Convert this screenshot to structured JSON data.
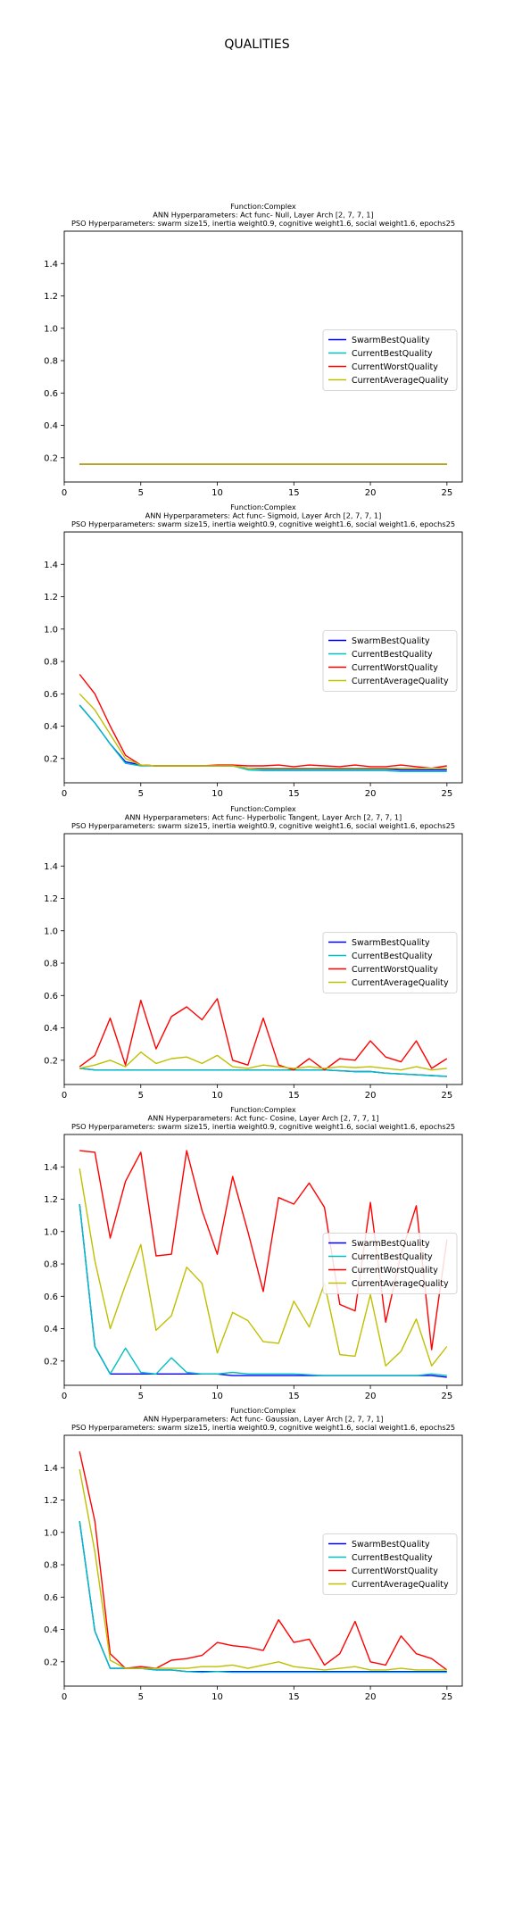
{
  "suptitle": "QUALITIES",
  "colors": {
    "SwarmBestQuality": "#0000ff",
    "CurrentBestQuality": "#00bfbf",
    "CurrentWorstQuality": "#ff0000",
    "CurrentAverageQuality": "#bfbf00"
  },
  "chart_data": [
    {
      "type": "line",
      "title_lines": [
        "Function:Complex",
        "ANN Hyperparameters: Act func- Null, Layer Arch [2, 7, 7, 1]",
        "PSO Hyperparameters: swarm size15, inertia weight0.9, cognitive weight1.6, social weight1.6, epochs25"
      ],
      "x": [
        1,
        2,
        3,
        4,
        5,
        6,
        7,
        8,
        9,
        10,
        11,
        12,
        13,
        14,
        15,
        16,
        17,
        18,
        19,
        20,
        21,
        22,
        23,
        24,
        25
      ],
      "xlim": [
        0,
        26
      ],
      "ylim": [
        0.05,
        1.6
      ],
      "xticks": [
        0,
        5,
        10,
        15,
        20,
        25
      ],
      "yticks": [
        0.2,
        0.4,
        0.6,
        0.8,
        1.0,
        1.2,
        1.4
      ],
      "legend": "center-right",
      "series": [
        {
          "name": "SwarmBestQuality",
          "values": [
            0.16,
            0.16,
            0.16,
            0.16,
            0.16,
            0.16,
            0.16,
            0.16,
            0.16,
            0.16,
            0.16,
            0.16,
            0.16,
            0.16,
            0.16,
            0.16,
            0.16,
            0.16,
            0.16,
            0.16,
            0.16,
            0.16,
            0.16,
            0.16,
            0.16
          ]
        },
        {
          "name": "CurrentBestQuality",
          "values": [
            0.16,
            0.16,
            0.16,
            0.16,
            0.16,
            0.16,
            0.16,
            0.16,
            0.16,
            0.16,
            0.16,
            0.16,
            0.16,
            0.16,
            0.16,
            0.16,
            0.16,
            0.16,
            0.16,
            0.16,
            0.16,
            0.16,
            0.16,
            0.16,
            0.16
          ]
        },
        {
          "name": "CurrentWorstQuality",
          "values": [
            0.16,
            0.16,
            0.16,
            0.16,
            0.16,
            0.16,
            0.16,
            0.16,
            0.16,
            0.16,
            0.16,
            0.16,
            0.16,
            0.16,
            0.16,
            0.16,
            0.16,
            0.16,
            0.16,
            0.16,
            0.16,
            0.16,
            0.16,
            0.16,
            0.16
          ]
        },
        {
          "name": "CurrentAverageQuality",
          "values": [
            0.16,
            0.16,
            0.16,
            0.16,
            0.16,
            0.16,
            0.16,
            0.16,
            0.16,
            0.16,
            0.16,
            0.16,
            0.16,
            0.16,
            0.16,
            0.16,
            0.16,
            0.16,
            0.16,
            0.16,
            0.16,
            0.16,
            0.16,
            0.16,
            0.16
          ]
        }
      ]
    },
    {
      "type": "line",
      "title_lines": [
        "Function:Complex",
        "ANN Hyperparameters: Act func- Sigmoid, Layer Arch [2, 7, 7, 1]",
        "PSO Hyperparameters: swarm size15, inertia weight0.9, cognitive weight1.6, social weight1.6, epochs25"
      ],
      "x": [
        1,
        2,
        3,
        4,
        5,
        6,
        7,
        8,
        9,
        10,
        11,
        12,
        13,
        14,
        15,
        16,
        17,
        18,
        19,
        20,
        21,
        22,
        23,
        24,
        25
      ],
      "xlim": [
        0,
        26
      ],
      "ylim": [
        0.05,
        1.6
      ],
      "xticks": [
        0,
        5,
        10,
        15,
        20,
        25
      ],
      "yticks": [
        0.2,
        0.4,
        0.6,
        0.8,
        1.0,
        1.2,
        1.4
      ],
      "legend": "center-right",
      "series": [
        {
          "name": "SwarmBestQuality",
          "values": [
            0.53,
            0.42,
            0.29,
            0.18,
            0.16,
            0.155,
            0.155,
            0.155,
            0.155,
            0.155,
            0.155,
            0.14,
            0.135,
            0.135,
            0.135,
            0.135,
            0.135,
            0.135,
            0.135,
            0.135,
            0.135,
            0.13,
            0.13,
            0.13,
            0.13
          ]
        },
        {
          "name": "CurrentBestQuality",
          "values": [
            0.53,
            0.42,
            0.29,
            0.17,
            0.155,
            0.155,
            0.155,
            0.155,
            0.155,
            0.155,
            0.155,
            0.13,
            0.125,
            0.125,
            0.125,
            0.125,
            0.125,
            0.125,
            0.125,
            0.125,
            0.125,
            0.12,
            0.12,
            0.12,
            0.12
          ]
        },
        {
          "name": "CurrentWorstQuality",
          "values": [
            0.72,
            0.6,
            0.4,
            0.22,
            0.16,
            0.155,
            0.155,
            0.155,
            0.155,
            0.16,
            0.16,
            0.155,
            0.155,
            0.16,
            0.15,
            0.16,
            0.155,
            0.15,
            0.16,
            0.15,
            0.15,
            0.16,
            0.15,
            0.14,
            0.155
          ]
        },
        {
          "name": "CurrentAverageQuality",
          "values": [
            0.6,
            0.5,
            0.35,
            0.2,
            0.16,
            0.155,
            0.155,
            0.155,
            0.155,
            0.155,
            0.155,
            0.14,
            0.14,
            0.14,
            0.14,
            0.14,
            0.14,
            0.14,
            0.14,
            0.14,
            0.14,
            0.14,
            0.14,
            0.14,
            0.14
          ]
        }
      ]
    },
    {
      "type": "line",
      "title_lines": [
        "Function:Complex",
        "ANN Hyperparameters: Act func- Hyperbolic Tangent, Layer Arch [2, 7, 7, 1]",
        "PSO Hyperparameters: swarm size15, inertia weight0.9, cognitive weight1.6, social weight1.6, epochs25"
      ],
      "x": [
        1,
        2,
        3,
        4,
        5,
        6,
        7,
        8,
        9,
        10,
        11,
        12,
        13,
        14,
        15,
        16,
        17,
        18,
        19,
        20,
        21,
        22,
        23,
        24,
        25
      ],
      "xlim": [
        0,
        26
      ],
      "ylim": [
        0.05,
        1.6
      ],
      "xticks": [
        0,
        5,
        10,
        15,
        20,
        25
      ],
      "yticks": [
        0.2,
        0.4,
        0.6,
        0.8,
        1.0,
        1.2,
        1.4
      ],
      "legend": "center-right",
      "series": [
        {
          "name": "SwarmBestQuality",
          "values": [
            0.15,
            0.14,
            0.14,
            0.14,
            0.14,
            0.14,
            0.14,
            0.14,
            0.14,
            0.14,
            0.14,
            0.14,
            0.14,
            0.14,
            0.14,
            0.14,
            0.14,
            0.135,
            0.13,
            0.13,
            0.12,
            0.115,
            0.11,
            0.105,
            0.1
          ]
        },
        {
          "name": "CurrentBestQuality",
          "values": [
            0.15,
            0.14,
            0.14,
            0.14,
            0.14,
            0.14,
            0.14,
            0.14,
            0.14,
            0.14,
            0.14,
            0.14,
            0.14,
            0.14,
            0.14,
            0.14,
            0.14,
            0.135,
            0.13,
            0.13,
            0.12,
            0.115,
            0.11,
            0.105,
            0.1
          ]
        },
        {
          "name": "CurrentWorstQuality",
          "values": [
            0.16,
            0.23,
            0.46,
            0.17,
            0.57,
            0.27,
            0.47,
            0.53,
            0.45,
            0.58,
            0.2,
            0.17,
            0.46,
            0.17,
            0.14,
            0.21,
            0.14,
            0.21,
            0.2,
            0.32,
            0.22,
            0.19,
            0.32,
            0.15,
            0.21
          ]
        },
        {
          "name": "CurrentAverageQuality",
          "values": [
            0.15,
            0.17,
            0.2,
            0.16,
            0.25,
            0.18,
            0.21,
            0.22,
            0.18,
            0.23,
            0.16,
            0.15,
            0.17,
            0.16,
            0.15,
            0.16,
            0.15,
            0.16,
            0.155,
            0.16,
            0.15,
            0.14,
            0.16,
            0.14,
            0.15
          ]
        }
      ]
    },
    {
      "type": "line",
      "title_lines": [
        "Function:Complex",
        "ANN Hyperparameters: Act func- Cosine, Layer Arch [2, 7, 7, 1]",
        "PSO Hyperparameters: swarm size15, inertia weight0.9, cognitive weight1.6, social weight1.6, epochs25"
      ],
      "x": [
        1,
        2,
        3,
        4,
        5,
        6,
        7,
        8,
        9,
        10,
        11,
        12,
        13,
        14,
        15,
        16,
        17,
        18,
        19,
        20,
        21,
        22,
        23,
        24,
        25
      ],
      "xlim": [
        0,
        26
      ],
      "ylim": [
        0.05,
        1.6
      ],
      "xticks": [
        0,
        5,
        10,
        15,
        20,
        25
      ],
      "yticks": [
        0.2,
        0.4,
        0.6,
        0.8,
        1.0,
        1.2,
        1.4
      ],
      "legend": "center-right",
      "series": [
        {
          "name": "SwarmBestQuality",
          "values": [
            1.17,
            0.29,
            0.12,
            0.12,
            0.12,
            0.12,
            0.12,
            0.12,
            0.12,
            0.12,
            0.11,
            0.11,
            0.11,
            0.11,
            0.11,
            0.11,
            0.11,
            0.11,
            0.11,
            0.11,
            0.11,
            0.11,
            0.11,
            0.11,
            0.1
          ]
        },
        {
          "name": "CurrentBestQuality",
          "values": [
            1.17,
            0.29,
            0.12,
            0.28,
            0.13,
            0.12,
            0.22,
            0.13,
            0.12,
            0.12,
            0.13,
            0.12,
            0.12,
            0.12,
            0.12,
            0.115,
            0.11,
            0.11,
            0.11,
            0.11,
            0.11,
            0.11,
            0.11,
            0.12,
            0.11
          ]
        },
        {
          "name": "CurrentWorstQuality",
          "values": [
            1.5,
            1.49,
            0.96,
            1.31,
            1.49,
            0.85,
            0.86,
            1.5,
            1.13,
            0.86,
            1.34,
            1.0,
            0.63,
            1.21,
            1.17,
            1.3,
            1.15,
            0.55,
            0.51,
            1.18,
            0.44,
            0.86,
            1.16,
            0.27,
            0.95
          ]
        },
        {
          "name": "CurrentAverageQuality",
          "values": [
            1.39,
            0.82,
            0.4,
            0.67,
            0.92,
            0.39,
            0.48,
            0.78,
            0.68,
            0.25,
            0.5,
            0.45,
            0.32,
            0.31,
            0.57,
            0.41,
            0.68,
            0.24,
            0.23,
            0.61,
            0.17,
            0.26,
            0.46,
            0.17,
            0.29
          ]
        }
      ]
    },
    {
      "type": "line",
      "title_lines": [
        "Function:Complex",
        "ANN Hyperparameters: Act func- Gaussian, Layer Arch [2, 7, 7, 1]",
        "PSO Hyperparameters: swarm size15, inertia weight0.9, cognitive weight1.6, social weight1.6, epochs25"
      ],
      "x": [
        1,
        2,
        3,
        4,
        5,
        6,
        7,
        8,
        9,
        10,
        11,
        12,
        13,
        14,
        15,
        16,
        17,
        18,
        19,
        20,
        21,
        22,
        23,
        24,
        25
      ],
      "xlim": [
        0,
        26
      ],
      "ylim": [
        0.05,
        1.6
      ],
      "xticks": [
        0,
        5,
        10,
        15,
        20,
        25
      ],
      "yticks": [
        0.2,
        0.4,
        0.6,
        0.8,
        1.0,
        1.2,
        1.4
      ],
      "legend": "center-right",
      "series": [
        {
          "name": "SwarmBestQuality",
          "values": [
            1.07,
            0.39,
            0.16,
            0.16,
            0.16,
            0.15,
            0.15,
            0.14,
            0.14,
            0.14,
            0.14,
            0.14,
            0.14,
            0.14,
            0.14,
            0.14,
            0.14,
            0.14,
            0.14,
            0.14,
            0.14,
            0.14,
            0.14,
            0.14,
            0.14
          ]
        },
        {
          "name": "CurrentBestQuality",
          "values": [
            1.07,
            0.39,
            0.16,
            0.16,
            0.16,
            0.15,
            0.15,
            0.14,
            0.135,
            0.14,
            0.135,
            0.135,
            0.135,
            0.135,
            0.135,
            0.135,
            0.135,
            0.135,
            0.135,
            0.135,
            0.135,
            0.135,
            0.135,
            0.135,
            0.135
          ]
        },
        {
          "name": "CurrentWorstQuality",
          "values": [
            1.5,
            1.07,
            0.25,
            0.16,
            0.17,
            0.16,
            0.21,
            0.22,
            0.24,
            0.32,
            0.3,
            0.29,
            0.27,
            0.46,
            0.32,
            0.34,
            0.18,
            0.25,
            0.45,
            0.2,
            0.18,
            0.36,
            0.25,
            0.22,
            0.15
          ]
        },
        {
          "name": "CurrentAverageQuality",
          "values": [
            1.39,
            0.88,
            0.21,
            0.16,
            0.16,
            0.16,
            0.16,
            0.16,
            0.17,
            0.17,
            0.18,
            0.16,
            0.18,
            0.2,
            0.17,
            0.16,
            0.15,
            0.16,
            0.17,
            0.15,
            0.15,
            0.16,
            0.15,
            0.15,
            0.15
          ]
        }
      ]
    }
  ]
}
